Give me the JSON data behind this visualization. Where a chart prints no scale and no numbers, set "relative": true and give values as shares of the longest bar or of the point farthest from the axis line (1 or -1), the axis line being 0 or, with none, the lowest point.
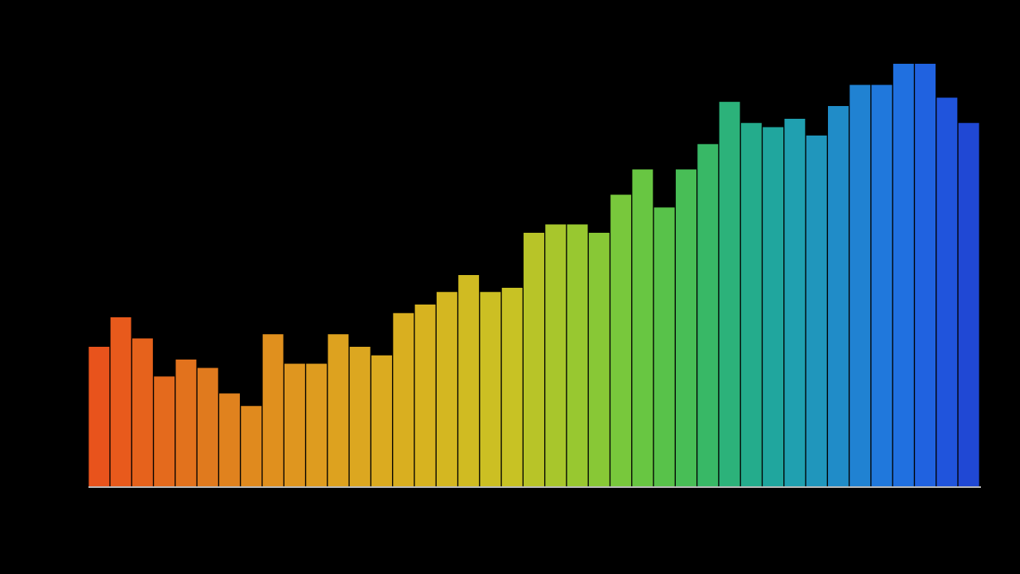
{
  "chart_data": {
    "type": "bar",
    "relative": true,
    "categories": [
      null,
      null,
      null,
      null,
      null,
      null,
      null,
      null,
      null,
      null,
      null,
      null,
      null,
      null,
      null,
      null,
      null,
      null,
      null,
      null,
      null,
      null,
      null,
      null,
      null,
      null,
      null,
      null,
      null,
      null,
      null,
      null,
      null,
      null,
      null,
      null,
      null,
      null,
      null,
      null,
      null
    ],
    "colors": [
      "#e8531c",
      "#e85a1c",
      "#e6621c",
      "#e46a1d",
      "#e2721d",
      "#e07a1e",
      "#e0821e",
      "#e08a1e",
      "#e0901e",
      "#df961f",
      "#de9c1f",
      "#dda21f",
      "#dca720",
      "#dbab20",
      "#d9af20",
      "#d7b320",
      "#d4b721",
      "#d0bb22",
      "#ccbf23",
      "#c8c224",
      "#b8c428",
      "#a8c62c",
      "#98c830",
      "#88c836",
      "#78c83c",
      "#68c642",
      "#58c24a",
      "#48be56",
      "#38b866",
      "#2cb27a",
      "#24ac8c",
      "#20a69e",
      "#20a0b0",
      "#2096bc",
      "#208cc8",
      "#2082d2",
      "#2078dc",
      "#2070e0",
      "#2062e0",
      "#2054dc",
      "#2048d4"
    ],
    "values": [
      0.33,
      0.4,
      0.35,
      0.26,
      0.3,
      0.28,
      0.22,
      0.19,
      0.36,
      0.29,
      0.29,
      0.36,
      0.33,
      0.31,
      0.41,
      0.43,
      0.46,
      0.5,
      0.46,
      0.47,
      0.6,
      0.62,
      0.62,
      0.6,
      0.69,
      0.75,
      0.66,
      0.75,
      0.81,
      0.91,
      0.86,
      0.85,
      0.87,
      0.83,
      0.9,
      0.95,
      0.95,
      1.0,
      1.0,
      0.92,
      0.86
    ]
  }
}
